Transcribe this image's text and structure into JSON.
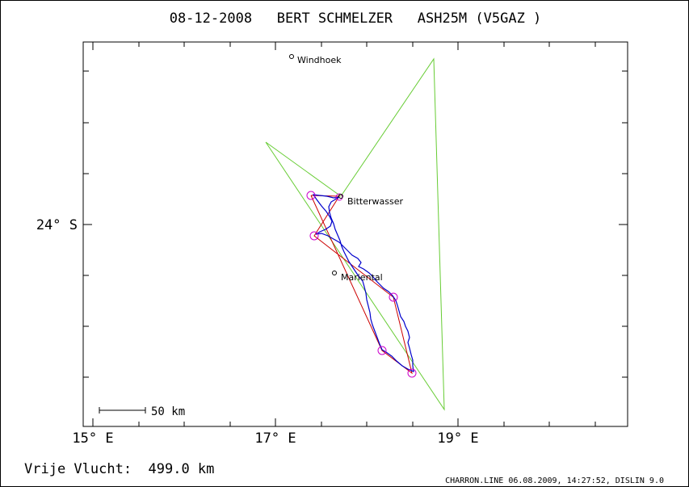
{
  "header": {
    "title": "08-12-2008   BERT SCHMELZER   ASH25M (V5GAZ )"
  },
  "axes": {
    "x_ticks": [
      "15° E",
      "17° E",
      "19° E"
    ],
    "y_ticks": [
      "24° S"
    ]
  },
  "scale_bar": {
    "label": "50 km"
  },
  "places": [
    {
      "name": "Windhoek"
    },
    {
      "name": "Bitterwasser"
    },
    {
      "name": "Mariental"
    }
  ],
  "footer": {
    "distance": "Vrije Vlucht:  499.0 km",
    "credits": "CHARRON.LINE 06.08.2009, 14:27:52, DISLIN 9.0"
  },
  "colors": {
    "frame": "#000000",
    "track": "#0000cc",
    "task": "#cc0000",
    "sector": "#66cc33",
    "turnpoint": "#cc00cc"
  }
}
